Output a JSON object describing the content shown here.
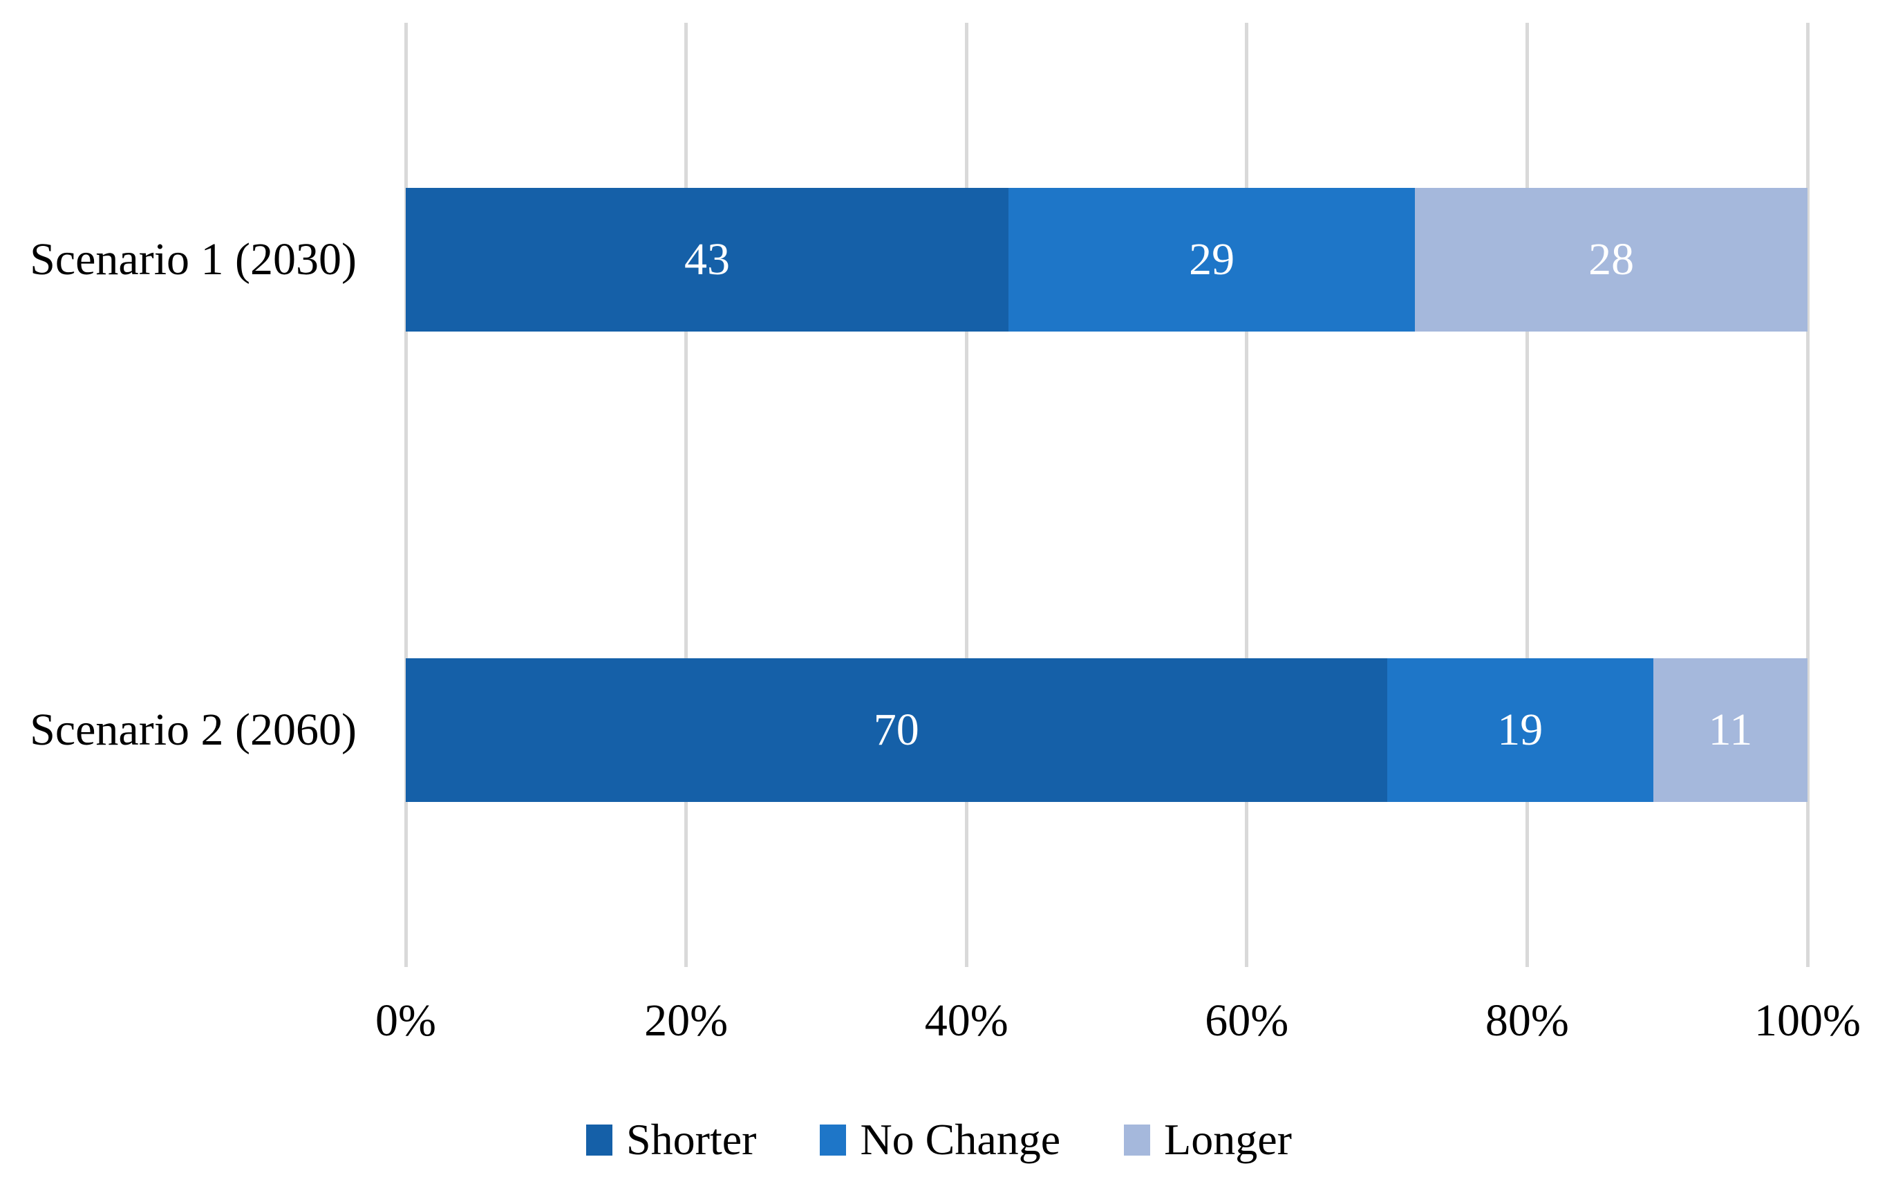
{
  "figure": {
    "background_color": "#FFFFFF",
    "text_color": "#000000"
  },
  "chart_data": {
    "type": "bar",
    "orientation": "horizontal",
    "stacked": true,
    "title": "",
    "xlabel": "",
    "ylabel": "",
    "categories": [
      "Scenario 1 (2030)",
      "Scenario 2 (2060)"
    ],
    "series": [
      {
        "name": "Shorter",
        "color": "#1560A8",
        "values": [
          43,
          70
        ]
      },
      {
        "name": "No Change",
        "color": "#1E76C8",
        "values": [
          29,
          19
        ]
      },
      {
        "name": "Longer",
        "color": "#A5B8DC",
        "values": [
          28,
          11
        ]
      }
    ],
    "xlim": [
      0,
      100
    ],
    "x_tick_labels": [
      "0%",
      "20%",
      "40%",
      "60%",
      "80%",
      "100%"
    ],
    "gridlines": "vertical",
    "gridline_color": "#D9D9D9",
    "legend_position": "bottom",
    "legend_entries": [
      "Shorter",
      "No Change",
      "Longer"
    ],
    "data_labels": true,
    "data_label_color": "#FFFFFF",
    "axis_text_color": "#000000"
  }
}
